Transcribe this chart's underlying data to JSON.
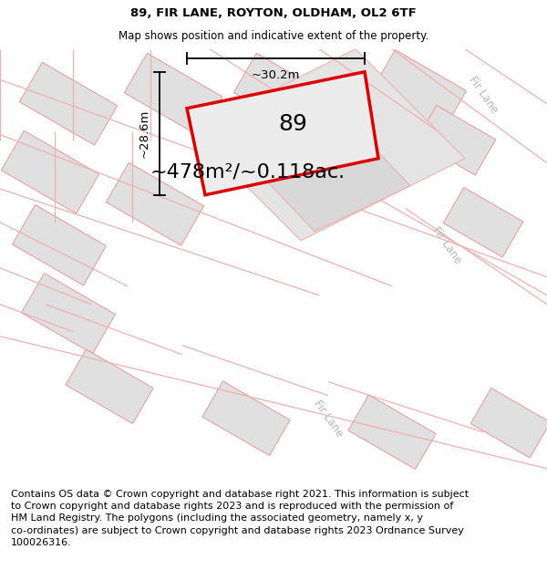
{
  "title": "89, FIR LANE, ROYTON, OLDHAM, OL2 6TF",
  "subtitle": "Map shows position and indicative extent of the property.",
  "area_label": "~478m²/~0.118ac.",
  "number_label": "89",
  "dim_width": "~30.2m",
  "dim_height": "~28.6m",
  "footer_line1": "Contains OS data © Crown copyright and database right 2021. This information is subject",
  "footer_line2": "to Crown copyright and database rights 2023 and is reproduced with the permission of",
  "footer_line3": "HM Land Registry. The polygons (including the associated geometry, namely x, y",
  "footer_line4": "co-ordinates) are subject to Crown copyright and database rights 2023 Ordnance Survey",
  "footer_line5": "100026316.",
  "bg_color": "#f7f7f7",
  "road_color": "#ffffff",
  "building_fill": "#e0e0e0",
  "building_edge_color": "#e8a0a0",
  "parcel_outline_color": "#f0b0b0",
  "property_color": "#dd0000",
  "property_fill": "#e8e8e8",
  "road_label_color": "#b8b8b8",
  "title_fontsize": 9.5,
  "subtitle_fontsize": 8.5,
  "footer_fontsize": 8.0,
  "area_fontsize": 16,
  "number_fontsize": 18,
  "dim_fontsize": 9.5
}
